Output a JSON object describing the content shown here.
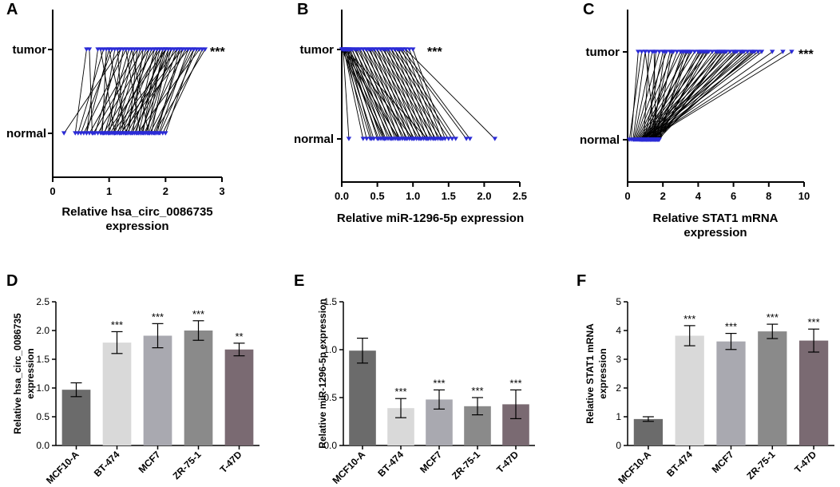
{
  "chart_data": [
    {
      "id": "A",
      "type": "paired-line",
      "panel_label": "A",
      "categories": [
        "tumor",
        "normal"
      ],
      "xlabel_lines": [
        "Relative hsa_circ_0086735",
        "expression"
      ],
      "xlim": [
        0,
        3
      ],
      "xticks": [
        0,
        1,
        2,
        3
      ],
      "significance": "***",
      "marker_color": "#2b2bd6",
      "pairs": [
        [
          0.2,
          1.2
        ],
        [
          0.4,
          0.6
        ],
        [
          0.45,
          0.9
        ],
        [
          0.5,
          1.05
        ],
        [
          0.55,
          1.3
        ],
        [
          0.6,
          1.0
        ],
        [
          0.65,
          1.5
        ],
        [
          0.7,
          0.65
        ],
        [
          0.72,
          1.6
        ],
        [
          0.75,
          1.2
        ],
        [
          0.8,
          1.7
        ],
        [
          0.85,
          1.1
        ],
        [
          0.88,
          0.95
        ],
        [
          0.9,
          1.8
        ],
        [
          0.92,
          1.35
        ],
        [
          0.95,
          2.0
        ],
        [
          0.98,
          1.25
        ],
        [
          1.0,
          1.4
        ],
        [
          1.02,
          1.9
        ],
        [
          1.05,
          2.2
        ],
        [
          1.08,
          1.45
        ],
        [
          1.1,
          1.55
        ],
        [
          1.12,
          2.3
        ],
        [
          1.15,
          1.65
        ],
        [
          1.18,
          1.75
        ],
        [
          1.2,
          2.4
        ],
        [
          1.22,
          1.85
        ],
        [
          1.25,
          1.15
        ],
        [
          1.28,
          2.0
        ],
        [
          1.3,
          1.7
        ],
        [
          1.32,
          2.1
        ],
        [
          1.35,
          1.5
        ],
        [
          1.38,
          1.95
        ],
        [
          1.4,
          2.25
        ],
        [
          1.42,
          1.6
        ],
        [
          1.45,
          2.05
        ],
        [
          1.48,
          1.8
        ],
        [
          1.5,
          2.6
        ],
        [
          1.52,
          1.9
        ],
        [
          1.55,
          2.15
        ],
        [
          1.58,
          2.0
        ],
        [
          1.6,
          1.85
        ],
        [
          1.62,
          2.35
        ],
        [
          1.65,
          2.1
        ],
        [
          1.68,
          1.95
        ],
        [
          1.7,
          2.2
        ],
        [
          1.72,
          2.5
        ],
        [
          1.75,
          2.05
        ],
        [
          1.78,
          2.45
        ],
        [
          1.8,
          2.7
        ],
        [
          1.82,
          2.3
        ],
        [
          1.85,
          2.25
        ],
        [
          1.88,
          2.4
        ],
        [
          1.9,
          2.55
        ],
        [
          1.95,
          2.65
        ],
        [
          2.0,
          2.5
        ],
        [
          1.3,
          1.0
        ],
        [
          1.1,
          0.85
        ],
        [
          0.6,
          0.8
        ],
        [
          1.55,
          1.3
        ],
        [
          1.7,
          1.4
        ]
      ]
    },
    {
      "id": "B",
      "type": "paired-line",
      "panel_label": "B",
      "categories": [
        "tumor",
        "normal"
      ],
      "xlabel_lines": [
        "Relative miR-1296-5p expression"
      ],
      "xlim": [
        0,
        2.5
      ],
      "xticks": [
        0.0,
        0.5,
        1.0,
        1.5,
        2.0,
        2.5
      ],
      "significance": "***",
      "marker_color": "#2b2bd6",
      "pairs": [
        [
          0.1,
          0.02
        ],
        [
          0.3,
          0.03
        ],
        [
          0.35,
          0.05
        ],
        [
          0.4,
          0.02
        ],
        [
          0.42,
          0.08
        ],
        [
          0.45,
          0.04
        ],
        [
          0.5,
          0.1
        ],
        [
          0.52,
          0.06
        ],
        [
          0.55,
          0.12
        ],
        [
          0.58,
          0.03
        ],
        [
          0.6,
          0.15
        ],
        [
          0.62,
          0.07
        ],
        [
          0.65,
          0.2
        ],
        [
          0.68,
          0.09
        ],
        [
          0.7,
          0.25
        ],
        [
          0.72,
          0.11
        ],
        [
          0.75,
          0.3
        ],
        [
          0.78,
          0.14
        ],
        [
          0.8,
          0.35
        ],
        [
          0.82,
          0.18
        ],
        [
          0.85,
          0.4
        ],
        [
          0.88,
          0.22
        ],
        [
          0.9,
          0.45
        ],
        [
          0.92,
          0.26
        ],
        [
          0.95,
          0.5
        ],
        [
          0.98,
          0.3
        ],
        [
          1.0,
          0.55
        ],
        [
          1.02,
          0.34
        ],
        [
          1.05,
          0.6
        ],
        [
          1.08,
          0.38
        ],
        [
          1.1,
          0.65
        ],
        [
          1.12,
          0.42
        ],
        [
          1.15,
          0.7
        ],
        [
          1.18,
          0.46
        ],
        [
          1.2,
          0.75
        ],
        [
          1.22,
          0.5
        ],
        [
          1.25,
          0.8
        ],
        [
          1.28,
          0.54
        ],
        [
          1.3,
          0.85
        ],
        [
          1.32,
          0.58
        ],
        [
          1.35,
          0.9
        ],
        [
          1.38,
          0.62
        ],
        [
          1.4,
          0.95
        ],
        [
          1.42,
          0.66
        ],
        [
          1.45,
          1.0
        ],
        [
          1.5,
          0.7
        ],
        [
          1.55,
          0.74
        ],
        [
          1.6,
          0.78
        ],
        [
          1.75,
          0.82
        ],
        [
          1.8,
          0.86
        ],
        [
          2.15,
          0.9
        ],
        [
          0.6,
          0.0
        ],
        [
          0.8,
          0.02
        ],
        [
          1.0,
          0.04
        ],
        [
          1.2,
          0.06
        ]
      ]
    },
    {
      "id": "C",
      "type": "paired-line",
      "panel_label": "C",
      "categories": [
        "tumor",
        "normal"
      ],
      "xlabel_lines": [
        "Relative STAT1 mRNA",
        "expression"
      ],
      "xlim": [
        0,
        10
      ],
      "xticks": [
        0,
        2,
        4,
        6,
        8,
        10
      ],
      "significance": "***",
      "marker_color": "#2b2bd6",
      "pairs": [
        [
          0.2,
          0.6
        ],
        [
          0.3,
          1.0
        ],
        [
          0.35,
          1.4
        ],
        [
          0.4,
          1.8
        ],
        [
          0.45,
          2.2
        ],
        [
          0.5,
          2.6
        ],
        [
          0.55,
          3.0
        ],
        [
          0.6,
          3.4
        ],
        [
          0.65,
          3.8
        ],
        [
          0.7,
          4.2
        ],
        [
          0.72,
          4.6
        ],
        [
          0.75,
          5.0
        ],
        [
          0.78,
          5.4
        ],
        [
          0.8,
          5.8
        ],
        [
          0.82,
          6.2
        ],
        [
          0.85,
          6.6
        ],
        [
          0.88,
          7.0
        ],
        [
          0.9,
          7.4
        ],
        [
          0.92,
          1.2
        ],
        [
          0.95,
          2.0
        ],
        [
          0.98,
          2.8
        ],
        [
          1.0,
          3.6
        ],
        [
          1.02,
          4.4
        ],
        [
          1.05,
          5.2
        ],
        [
          1.08,
          6.0
        ],
        [
          1.1,
          6.8
        ],
        [
          1.12,
          7.6
        ],
        [
          1.15,
          8.2
        ],
        [
          1.18,
          8.8
        ],
        [
          1.2,
          9.3
        ],
        [
          1.22,
          1.6
        ],
        [
          1.25,
          2.4
        ],
        [
          1.28,
          3.2
        ],
        [
          1.3,
          4.0
        ],
        [
          1.32,
          4.8
        ],
        [
          1.35,
          5.6
        ],
        [
          1.38,
          6.4
        ],
        [
          1.4,
          7.2
        ],
        [
          1.42,
          2.1
        ],
        [
          1.45,
          3.1
        ],
        [
          1.48,
          4.1
        ],
        [
          1.5,
          5.1
        ],
        [
          1.52,
          6.1
        ],
        [
          1.55,
          7.1
        ],
        [
          1.58,
          1.0
        ],
        [
          1.6,
          1.5
        ],
        [
          1.62,
          2.5
        ],
        [
          1.65,
          3.5
        ],
        [
          1.68,
          4.5
        ],
        [
          1.7,
          5.5
        ],
        [
          1.72,
          6.5
        ],
        [
          1.75,
          3.3
        ],
        [
          1.78,
          4.3
        ],
        [
          1.8,
          5.3
        ],
        [
          0.1,
          0.8
        ]
      ]
    },
    {
      "id": "D",
      "type": "bar",
      "panel_label": "D",
      "categories": [
        "MCF10-A",
        "BT-474",
        "MCF7",
        "ZR-75-1",
        "T-47D"
      ],
      "values": [
        0.97,
        1.79,
        1.91,
        2.0,
        1.67
      ],
      "errors": [
        0.12,
        0.19,
        0.21,
        0.17,
        0.11
      ],
      "significance": [
        "",
        "***",
        "***",
        "***",
        "**"
      ],
      "colors": [
        "#6b6b6b",
        "#d9d9d9",
        "#a9a9b0",
        "#8a8a8a",
        "#7a6a72"
      ],
      "ylabel_lines": [
        "Relative hsa_circ_0086735",
        "expression"
      ],
      "ylim": [
        0,
        2.5
      ],
      "yticks": [
        "0.0",
        "0.5",
        "1.0",
        "1.5",
        "2.0",
        "2.5"
      ]
    },
    {
      "id": "E",
      "type": "bar",
      "panel_label": "E",
      "categories": [
        "MCF10-A",
        "BT-474",
        "MCF7",
        "ZR-75-1",
        "T-47D"
      ],
      "values": [
        0.99,
        0.39,
        0.48,
        0.41,
        0.43
      ],
      "errors": [
        0.13,
        0.1,
        0.1,
        0.09,
        0.15
      ],
      "significance": [
        "",
        "***",
        "***",
        "***",
        "***"
      ],
      "colors": [
        "#6b6b6b",
        "#d9d9d9",
        "#a9a9b0",
        "#8a8a8a",
        "#7a6a72"
      ],
      "ylabel_lines": [
        "Relative miR-1296-5p expression"
      ],
      "ylim": [
        0,
        1.5
      ],
      "yticks": [
        "0.0",
        "0.5",
        "1.0",
        "1.5"
      ]
    },
    {
      "id": "F",
      "type": "bar",
      "panel_label": "F",
      "categories": [
        "MCF10-A",
        "BT-474",
        "MCF7",
        "ZR-75-1",
        "T-47D"
      ],
      "values": [
        0.92,
        3.82,
        3.62,
        3.97,
        3.65
      ],
      "errors": [
        0.08,
        0.35,
        0.28,
        0.25,
        0.4
      ],
      "significance": [
        "",
        "***",
        "***",
        "***",
        "***"
      ],
      "colors": [
        "#6b6b6b",
        "#d9d9d9",
        "#a9a9b0",
        "#8a8a8a",
        "#7a6a72"
      ],
      "ylabel_lines": [
        "Relative STAT1 mRNA",
        "expression"
      ],
      "ylim": [
        0,
        5
      ],
      "yticks": [
        "0",
        "1",
        "2",
        "3",
        "4",
        "5"
      ]
    }
  ]
}
